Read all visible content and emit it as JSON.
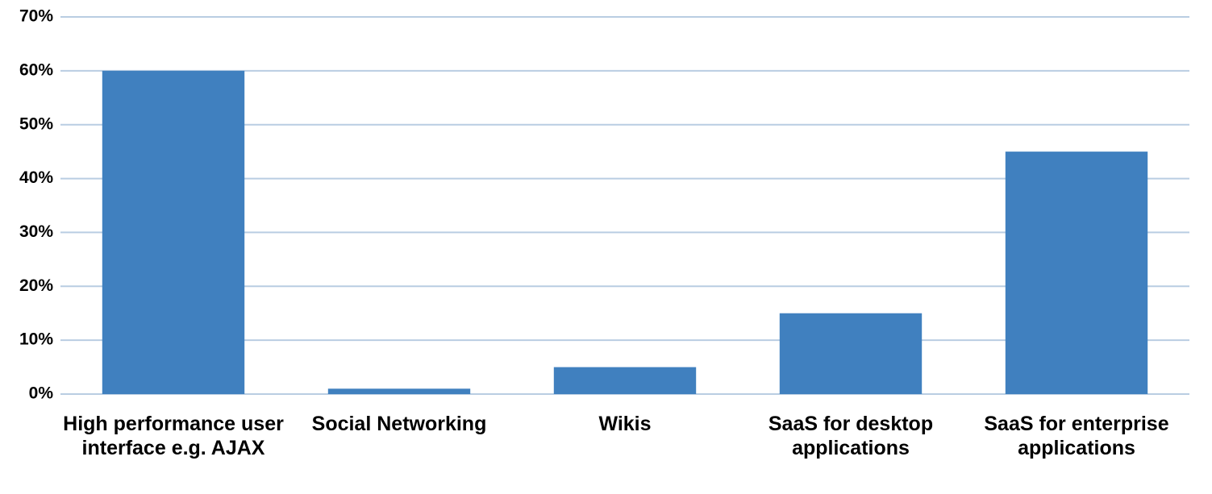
{
  "chart_data": {
    "type": "bar",
    "categories": [
      "High performance user interface e.g. AJAX",
      "Social Networking",
      "Wikis",
      "SaaS for desktop applications",
      "SaaS for enterprise applications"
    ],
    "values": [
      60,
      1,
      5,
      15,
      45
    ],
    "color": "#4080bf",
    "ylim": [
      0,
      70
    ],
    "yticks": [
      {
        "value": 0,
        "label": "0%"
      },
      {
        "value": 10,
        "label": "10%"
      },
      {
        "value": 20,
        "label": "20%"
      },
      {
        "value": 30,
        "label": "30%"
      },
      {
        "value": 40,
        "label": "40%"
      },
      {
        "value": 50,
        "label": "50%"
      },
      {
        "value": 60,
        "label": "60%"
      },
      {
        "value": 70,
        "label": "70%"
      }
    ],
    "grid": true
  }
}
